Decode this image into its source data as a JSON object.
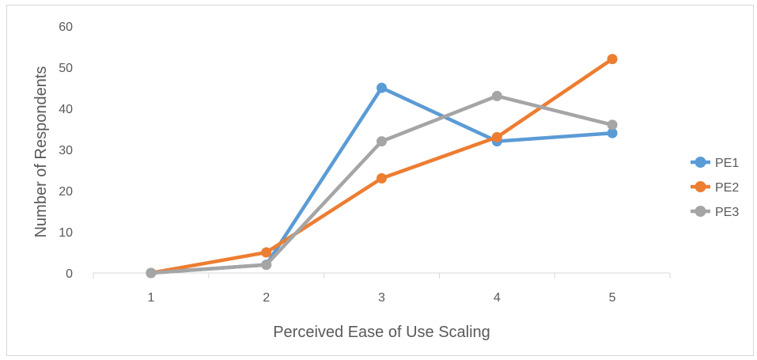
{
  "chart_data": {
    "type": "line",
    "title": "",
    "xlabel": "Perceived Ease of Use Scaling",
    "ylabel": "Number of Respondents",
    "categories": [
      "1",
      "2",
      "3",
      "4",
      "5"
    ],
    "ylim": [
      0,
      60
    ],
    "yticks": [
      "0",
      "10",
      "20",
      "30",
      "40",
      "50",
      "60"
    ],
    "grid": false,
    "legend_position": "right",
    "series": [
      {
        "name": "PE1",
        "color": "#5b9bd5",
        "values": [
          0,
          2,
          45,
          32,
          34
        ]
      },
      {
        "name": "PE2",
        "color": "#ed7d31",
        "values": [
          0,
          5,
          23,
          33,
          52
        ]
      },
      {
        "name": "PE3",
        "color": "#a5a5a5",
        "values": [
          0,
          2,
          32,
          43,
          36
        ]
      }
    ]
  }
}
